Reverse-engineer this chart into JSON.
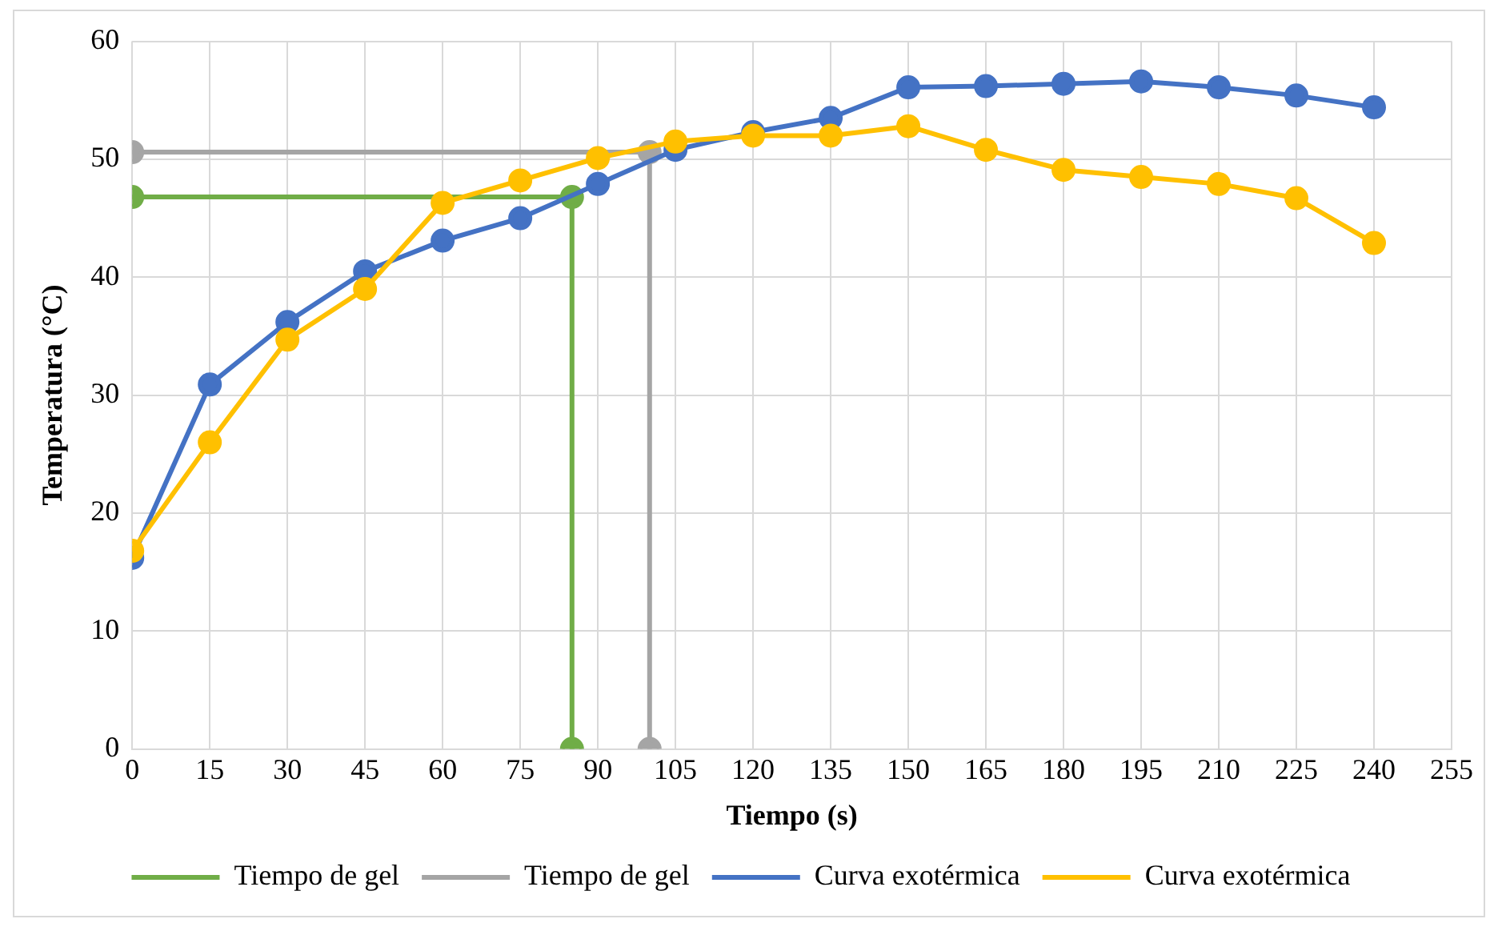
{
  "chart_data": {
    "type": "line",
    "xlabel": "Tiempo (s)",
    "ylabel": "Temperatura (°C)",
    "xlim": [
      0,
      255
    ],
    "xticks": [
      0,
      15,
      30,
      45,
      60,
      75,
      90,
      105,
      120,
      135,
      150,
      165,
      180,
      195,
      210,
      225,
      240,
      255
    ],
    "ylim": [
      0,
      60
    ],
    "yticks": [
      0,
      10,
      20,
      30,
      40,
      50,
      60
    ],
    "grid": true,
    "legend": "bottom",
    "marker": "circle",
    "line_style": "solid",
    "series": [
      {
        "name": "Tiempo de gel",
        "color": "#70ad47",
        "x": [
          0,
          85,
          85
        ],
        "values": [
          46.8,
          46.8,
          0
        ]
      },
      {
        "name": "Tiempo de gel",
        "color": "#a5a5a5",
        "x": [
          0,
          100,
          100
        ],
        "values": [
          50.6,
          50.6,
          0
        ]
      },
      {
        "name": "Curva exotérmica",
        "color": "#4472c4",
        "x": [
          0,
          15,
          30,
          45,
          60,
          75,
          90,
          105,
          120,
          135,
          150,
          165,
          180,
          195,
          210,
          225,
          240
        ],
        "values": [
          16.2,
          30.9,
          36.2,
          40.5,
          43.1,
          45.0,
          47.9,
          50.8,
          52.3,
          53.5,
          56.1,
          56.2,
          56.4,
          56.6,
          56.1,
          55.4,
          54.4
        ]
      },
      {
        "name": "Curva exotérmica",
        "color": "#ffc000",
        "x": [
          0,
          15,
          30,
          45,
          60,
          75,
          90,
          105,
          120,
          135,
          150,
          165,
          180,
          195,
          210,
          225,
          240
        ],
        "values": [
          16.8,
          26.0,
          34.7,
          39.0,
          46.3,
          48.2,
          50.1,
          51.5,
          52.0,
          52.0,
          52.8,
          50.8,
          49.1,
          48.5,
          47.9,
          46.7,
          42.9
        ]
      }
    ]
  }
}
